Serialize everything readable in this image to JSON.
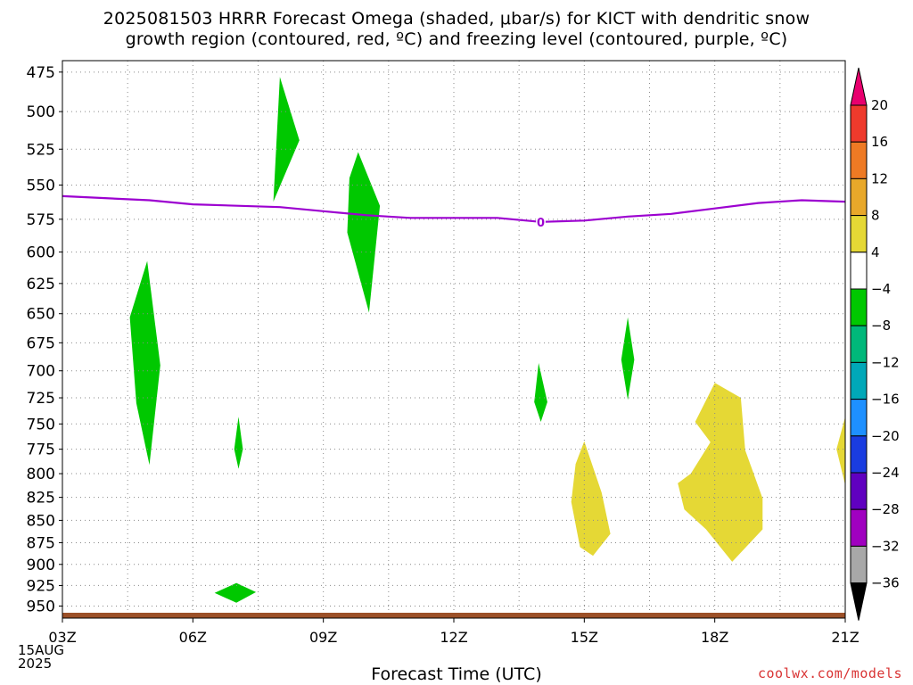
{
  "title_lines": [
    "2025081503 HRRR Forecast Omega (shaded, μbar/s) for KICT with dendritic snow",
    "growth region (contoured, red, ºC) and freezing level (contoured, purple, ºC)"
  ],
  "credit": "coolwx.com/models",
  "colors": {
    "green": "#00c800",
    "yellow": "#e5d835",
    "purple": "#9c00d0",
    "ground": "#9b5028",
    "grid": "#8a8a8a"
  },
  "chart_data": {
    "type": "contour",
    "title": "2025081503 HRRR Forecast Omega (shaded, μbar/s) for KICT with dendritic snow growth region (contoured, red, ºC) and freezing level (contoured, purple, ºC)",
    "xlabel": "Forecast Time (UTC)",
    "x_date_label": [
      "15AUG",
      "2025"
    ],
    "x_ticks": [
      "03Z",
      "06Z",
      "09Z",
      "12Z",
      "15Z",
      "18Z",
      "21Z"
    ],
    "x_range_hours": [
      3,
      21
    ],
    "y_ticks": [
      475,
      500,
      525,
      550,
      575,
      600,
      625,
      650,
      675,
      700,
      725,
      750,
      775,
      800,
      825,
      850,
      875,
      900,
      925,
      950
    ],
    "y_range_hPa": [
      965,
      468
    ],
    "y_scale": "log",
    "grid": true,
    "freezing_level": {
      "label": "0",
      "points": [
        [
          3,
          558
        ],
        [
          5,
          561
        ],
        [
          6,
          564
        ],
        [
          8,
          566
        ],
        [
          9,
          569
        ],
        [
          10,
          572
        ],
        [
          11,
          574
        ],
        [
          12,
          574
        ],
        [
          13,
          574
        ],
        [
          14,
          577
        ],
        [
          15,
          576
        ],
        [
          16,
          573
        ],
        [
          17,
          571
        ],
        [
          18,
          567
        ],
        [
          19,
          563
        ],
        [
          20,
          561
        ],
        [
          21,
          562
        ]
      ]
    },
    "shaded_regions": [
      {
        "range": "-8 to -4",
        "color": "green",
        "points": [
          [
            8.0,
            478
          ],
          [
            8.45,
            519
          ],
          [
            7.85,
            562
          ]
        ]
      },
      {
        "range": "-8 to -4",
        "color": "green",
        "points": [
          [
            9.8,
            527
          ],
          [
            10.3,
            565
          ],
          [
            10.05,
            649
          ],
          [
            9.55,
            585
          ],
          [
            9.6,
            545
          ]
        ]
      },
      {
        "range": "-8 to -4",
        "color": "green",
        "points": [
          [
            4.95,
            607
          ],
          [
            5.25,
            695
          ],
          [
            5.0,
            791
          ],
          [
            4.7,
            730
          ],
          [
            4.55,
            653
          ]
        ]
      },
      {
        "range": "-8 to -4",
        "color": "green",
        "points": [
          [
            7.05,
            743
          ],
          [
            7.15,
            775
          ],
          [
            7.05,
            795
          ],
          [
            6.95,
            775
          ]
        ]
      },
      {
        "range": "-8 to -4",
        "color": "green",
        "points": [
          [
            6.5,
            934
          ],
          [
            7.0,
            922
          ],
          [
            7.45,
            933
          ],
          [
            7.0,
            946
          ]
        ]
      },
      {
        "range": "-8 to -4",
        "color": "green",
        "points": [
          [
            13.95,
            693
          ],
          [
            14.15,
            729
          ],
          [
            14.0,
            748
          ],
          [
            13.85,
            729
          ]
        ]
      },
      {
        "range": "-8 to -4",
        "color": "green",
        "points": [
          [
            16.0,
            653
          ],
          [
            16.15,
            690
          ],
          [
            16.0,
            727
          ],
          [
            15.85,
            690
          ]
        ]
      },
      {
        "range": "4 to 8",
        "color": "yellow",
        "points": [
          [
            15.0,
            767
          ],
          [
            15.4,
            820
          ],
          [
            15.6,
            865
          ],
          [
            15.2,
            890
          ],
          [
            14.9,
            880
          ],
          [
            14.7,
            830
          ],
          [
            14.8,
            790
          ]
        ]
      },
      {
        "range": "4 to 8",
        "color": "yellow",
        "points": [
          [
            18.0,
            711
          ],
          [
            18.6,
            725
          ],
          [
            18.7,
            776
          ],
          [
            19.1,
            826
          ],
          [
            19.1,
            860
          ],
          [
            18.4,
            897
          ],
          [
            17.8,
            860
          ],
          [
            17.3,
            838
          ],
          [
            17.15,
            810
          ],
          [
            17.45,
            800
          ],
          [
            17.9,
            768
          ],
          [
            17.55,
            748
          ]
        ]
      },
      {
        "range": "4 to 8",
        "color": "yellow",
        "points": [
          [
            21.0,
            743
          ],
          [
            21.0,
            812
          ],
          [
            20.8,
            775
          ]
        ]
      }
    ],
    "colorbar": {
      "labels": [
        "20",
        "16",
        "12",
        "8",
        "4",
        "−4",
        "−8",
        "−12",
        "−16",
        "−20",
        "−24",
        "−28",
        "−32",
        "−36"
      ],
      "colors": [
        "#e8006e",
        "#ee3a2c",
        "#ee7a24",
        "#e8a82a",
        "#e5d835",
        "#ffffff",
        "#00c800",
        "#00b87a",
        "#00a8b8",
        "#1e90ff",
        "#1a3ce0",
        "#6000c0",
        "#a000c0",
        "#a8a8a8",
        "#000000"
      ]
    }
  }
}
